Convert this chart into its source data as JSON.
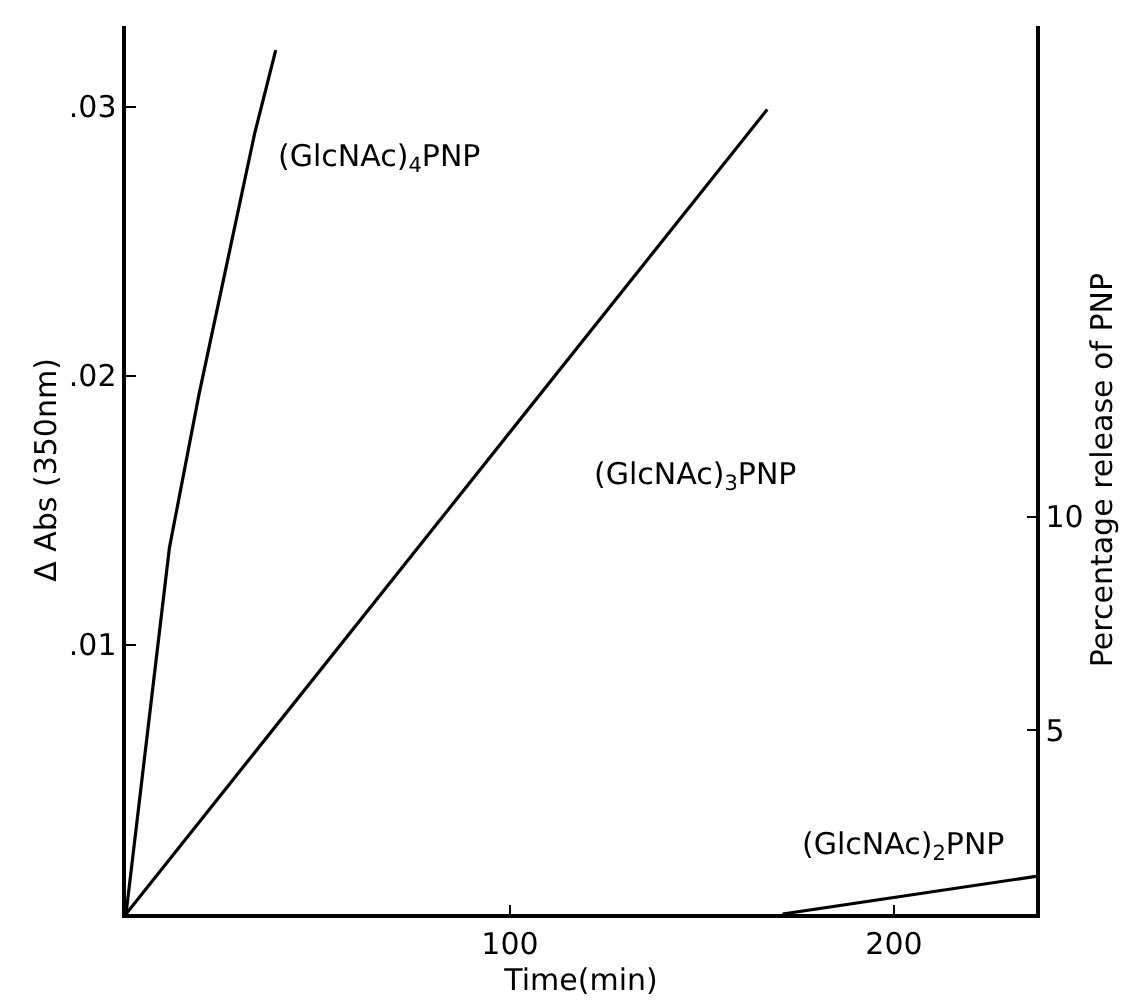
{
  "chart_data": {
    "type": "line",
    "xlabel": "Time(min)",
    "ylabel": "Δ Abs (350nm)",
    "y2label": "Percentage release of PNP",
    "series": [
      {
        "name": "(GlcNAc)$_{4}$PNP",
        "color": "#000000",
        "x": [
          0,
          11.3,
          19,
          33.5,
          39
        ],
        "values": [
          0,
          0.0136,
          0.0193,
          0.029,
          0.0321
        ]
      },
      {
        "name": "(GlcNAc)$_{3}$PNP",
        "color": "#000000",
        "x": [
          0,
          167
        ],
        "values": [
          0,
          0.0299
        ]
      },
      {
        "name": "(GlcNAc)$_{2}$PNP",
        "color": "#000000",
        "x": [
          171,
          237
        ],
        "values": [
          0,
          0.0014
        ]
      }
    ],
    "xlim": [
      0,
      237
    ],
    "xticks": [
      100,
      200
    ],
    "ylim": [
      0,
      0.033
    ],
    "yticks": [
      {
        "value": 0.01,
        "label": ".01"
      },
      {
        "value": 0.02,
        "label": ".02"
      },
      {
        "value": 0.03,
        "label": ".03"
      }
    ],
    "y2lim": [
      0.7,
      21.5
    ],
    "y2ticks": [
      5,
      10
    ],
    "legend": false,
    "marker": "none",
    "line_style": "solid"
  }
}
